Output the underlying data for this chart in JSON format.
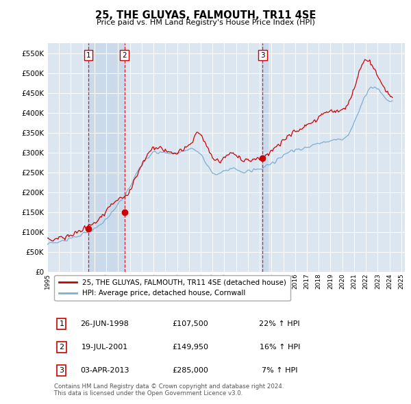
{
  "title": "25, THE GLUYAS, FALMOUTH, TR11 4SE",
  "subtitle": "Price paid vs. HM Land Registry's House Price Index (HPI)",
  "ylim": [
    0,
    575000
  ],
  "yticks": [
    0,
    50000,
    100000,
    150000,
    200000,
    250000,
    300000,
    350000,
    400000,
    450000,
    500000,
    550000
  ],
  "ytick_labels": [
    "£0",
    "£50K",
    "£100K",
    "£150K",
    "£200K",
    "£250K",
    "£300K",
    "£350K",
    "£400K",
    "£450K",
    "£500K",
    "£550K"
  ],
  "plot_bg_color": "#dce6f1",
  "grid_color": "#ffffff",
  "red_line_color": "#cc0000",
  "blue_line_color": "#7bafd4",
  "shade_color": "#c5d8ee",
  "sale_points": [
    {
      "year": 1998.48,
      "price": 107500,
      "label": "1"
    },
    {
      "year": 2001.54,
      "price": 149950,
      "label": "2"
    },
    {
      "year": 2013.25,
      "price": 285000,
      "label": "3"
    }
  ],
  "vline_color": "#cc0000",
  "vline_style": "--",
  "legend_red_label": "25, THE GLUYAS, FALMOUTH, TR11 4SE (detached house)",
  "legend_blue_label": "HPI: Average price, detached house, Cornwall",
  "table_data": [
    {
      "num": "1",
      "date": "26-JUN-1998",
      "price": "£107,500",
      "hpi": "22% ↑ HPI"
    },
    {
      "num": "2",
      "date": "19-JUL-2001",
      "price": "£149,950",
      "hpi": "16% ↑ HPI"
    },
    {
      "num": "3",
      "date": "03-APR-2013",
      "price": "£285,000",
      "hpi": "7% ↑ HPI"
    }
  ],
  "footer": "Contains HM Land Registry data © Crown copyright and database right 2024.\nThis data is licensed under the Open Government Licence v3.0.",
  "xlim_left": 1995.0,
  "xlim_right": 2025.3
}
